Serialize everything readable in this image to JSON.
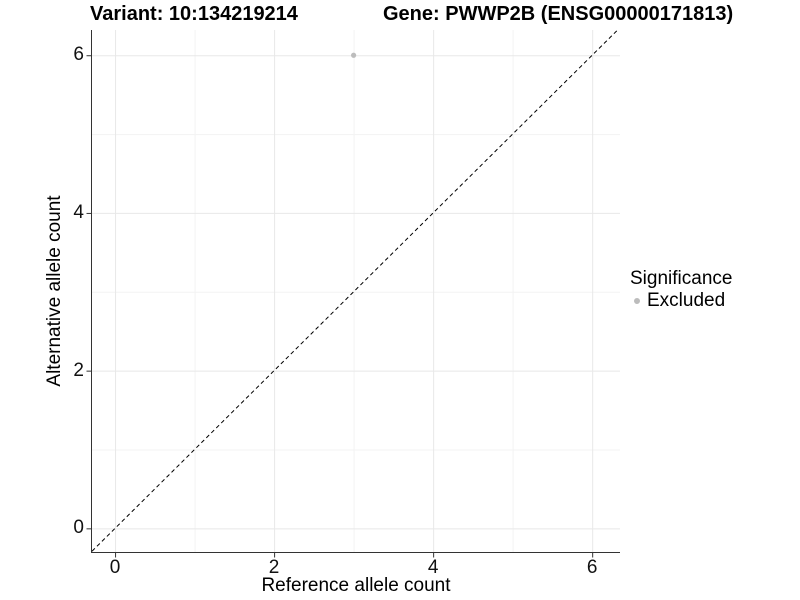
{
  "header": {
    "variant_title": "Variant: 10:134219214",
    "gene_title": "Gene: PWWP2B (ENSG00000171813)"
  },
  "chart_data": {
    "type": "scatter",
    "title_left": "Variant: 10:134219214",
    "title_right": "Gene: PWWP2B (ENSG00000171813)",
    "xlabel": "Reference allele count",
    "ylabel": "Alternative allele count",
    "xlim": [
      -0.29,
      6.35
    ],
    "ylim": [
      -0.3,
      6.32
    ],
    "x_ticks": [
      0,
      2,
      4,
      6
    ],
    "y_ticks": [
      0,
      2,
      4,
      6
    ],
    "minor_ticks": [
      1,
      3,
      5
    ],
    "grid": true,
    "series": [
      {
        "name": "Excluded",
        "color": "#bcbcbc",
        "points": [
          {
            "x": 3,
            "y": 6
          }
        ]
      }
    ],
    "reference_line": {
      "type": "identity",
      "style": "dashed",
      "color": "#000000"
    },
    "legend": {
      "title": "Significance",
      "position": "right",
      "items": [
        {
          "label": "Excluded",
          "color": "#bcbcbc"
        }
      ]
    },
    "colors": {
      "background": "#ffffff",
      "grid_major": "#e8e8e8",
      "grid_minor": "#f3f3f3",
      "axis": "#333333",
      "tick_text": "#111111"
    }
  }
}
